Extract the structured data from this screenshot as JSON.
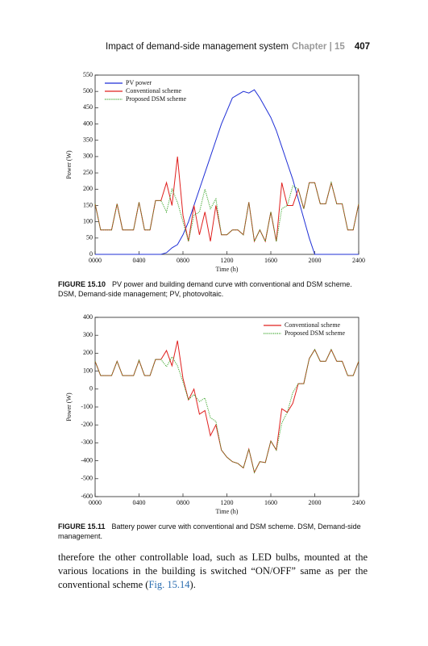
{
  "header": {
    "title": "Impact of demand-side management system",
    "chapter": "Chapter | 15",
    "page": "407"
  },
  "chart_data": [
    {
      "type": "line",
      "xlabel": "Time (h)",
      "ylabel": "Power (W)",
      "legend": "upper left",
      "xlim": [
        0,
        24
      ],
      "xticks": [
        {
          "value": 0,
          "label": "0000"
        },
        {
          "value": 4,
          "label": "0400"
        },
        {
          "value": 8,
          "label": "0800"
        },
        {
          "value": 12,
          "label": "1200"
        },
        {
          "value": 16,
          "label": "1600"
        },
        {
          "value": 20,
          "label": "2000"
        },
        {
          "value": 24,
          "label": "2400"
        }
      ],
      "ylim": [
        0,
        550
      ],
      "yticks": [
        0,
        50,
        100,
        150,
        200,
        250,
        300,
        350,
        400,
        450,
        500,
        550
      ],
      "x": [
        0,
        0.5,
        1,
        1.5,
        2,
        2.5,
        3,
        3.5,
        4,
        4.5,
        5,
        5.5,
        6,
        6.5,
        7,
        7.5,
        8,
        8.5,
        9,
        9.5,
        10,
        10.5,
        11,
        11.5,
        12,
        12.5,
        13,
        13.5,
        14,
        14.5,
        15,
        15.5,
        16,
        16.5,
        17,
        17.5,
        18,
        18.5,
        19,
        19.5,
        20,
        20.5,
        21,
        21.5,
        22,
        22.5,
        23,
        23.5,
        24
      ],
      "series": [
        {
          "name": "PV power",
          "color": "#1f2fd6",
          "dash": "solid",
          "values": [
            0,
            0,
            0,
            0,
            0,
            0,
            0,
            0,
            0,
            0,
            0,
            0,
            0,
            5,
            20,
            30,
            60,
            100,
            150,
            200,
            250,
            300,
            350,
            400,
            440,
            480,
            490,
            500,
            495,
            505,
            480,
            450,
            420,
            380,
            330,
            280,
            230,
            170,
            110,
            50,
            0,
            0,
            0,
            0,
            0,
            0,
            0,
            0,
            0
          ]
        },
        {
          "name": "Conventional scheme",
          "color": "#e0201e",
          "dash": "solid",
          "values": [
            155,
            75,
            75,
            75,
            155,
            75,
            75,
            75,
            160,
            75,
            75,
            165,
            165,
            220,
            150,
            300,
            120,
            40,
            150,
            60,
            130,
            40,
            150,
            60,
            60,
            75,
            75,
            60,
            160,
            40,
            75,
            40,
            130,
            40,
            220,
            150,
            150,
            200,
            140,
            220,
            220,
            155,
            155,
            220,
            155,
            155,
            75,
            75,
            155
          ]
        },
        {
          "name": "Proposed DSM scheme",
          "color": "#3aa52a",
          "dash": "dotted",
          "values": [
            155,
            75,
            75,
            75,
            155,
            75,
            75,
            75,
            160,
            75,
            75,
            165,
            165,
            130,
            200,
            160,
            100,
            40,
            120,
            130,
            200,
            140,
            170,
            60,
            60,
            75,
            75,
            60,
            160,
            40,
            75,
            40,
            130,
            40,
            140,
            150,
            210,
            200,
            140,
            220,
            220,
            155,
            155,
            220,
            155,
            155,
            75,
            75,
            155
          ]
        }
      ]
    },
    {
      "type": "line",
      "xlabel": "Time (h)",
      "ylabel": "Power (W)",
      "legend": "upper right",
      "xlim": [
        0,
        24
      ],
      "xticks": [
        {
          "value": 0,
          "label": "0000"
        },
        {
          "value": 4,
          "label": "0400"
        },
        {
          "value": 8,
          "label": "0800"
        },
        {
          "value": 12,
          "label": "1200"
        },
        {
          "value": 16,
          "label": "1600"
        },
        {
          "value": 20,
          "label": "2000"
        },
        {
          "value": 24,
          "label": "2400"
        }
      ],
      "ylim": [
        -600,
        400
      ],
      "yticks": [
        -600,
        -500,
        -400,
        -300,
        -200,
        -100,
        0,
        100,
        200,
        300,
        400
      ],
      "x": [
        0,
        0.5,
        1,
        1.5,
        2,
        2.5,
        3,
        3.5,
        4,
        4.5,
        5,
        5.5,
        6,
        6.5,
        7,
        7.5,
        8,
        8.5,
        9,
        9.5,
        10,
        10.5,
        11,
        11.5,
        12,
        12.5,
        13,
        13.5,
        14,
        14.5,
        15,
        15.5,
        16,
        16.5,
        17,
        17.5,
        18,
        18.5,
        19,
        19.5,
        20,
        20.5,
        21,
        21.5,
        22,
        22.5,
        23,
        23.5,
        24
      ],
      "series": [
        {
          "name": "Conventional scheme",
          "color": "#e0201e",
          "dash": "solid",
          "values": [
            155,
            75,
            75,
            75,
            155,
            75,
            75,
            75,
            160,
            75,
            75,
            165,
            165,
            215,
            130,
            270,
            60,
            -60,
            0,
            -140,
            -120,
            -260,
            -200,
            -340,
            -380,
            -405,
            -415,
            -440,
            -335,
            -465,
            -405,
            -410,
            -290,
            -340,
            -110,
            -130,
            -80,
            30,
            30,
            170,
            220,
            155,
            155,
            220,
            155,
            155,
            75,
            75,
            155
          ]
        },
        {
          "name": "Proposed DSM scheme",
          "color": "#3aa52a",
          "dash": "dotted",
          "values": [
            155,
            75,
            75,
            75,
            155,
            75,
            75,
            75,
            160,
            75,
            75,
            165,
            165,
            125,
            180,
            130,
            40,
            -60,
            -30,
            -70,
            -50,
            -160,
            -180,
            -340,
            -380,
            -405,
            -415,
            -440,
            -335,
            -465,
            -405,
            -410,
            -290,
            -340,
            -190,
            -130,
            -20,
            30,
            30,
            170,
            220,
            155,
            155,
            220,
            155,
            155,
            75,
            75,
            155
          ]
        }
      ]
    }
  ],
  "captions": [
    {
      "label": "FIGURE 15.10",
      "text": "PV power and building demand curve with conventional and DSM scheme. DSM, Demand-side management; PV, photovoltaic."
    },
    {
      "label": "FIGURE 15.11",
      "text": "Battery power curve with conventional and DSM scheme. DSM, Demand-side management."
    }
  ],
  "body": {
    "text_before": "therefore the other controllable load, such as LED bulbs, mounted at the various locations in the building is switched “ON/OFF” same as per the conventional scheme (",
    "link": "Fig. 15.14",
    "text_after": ")."
  }
}
